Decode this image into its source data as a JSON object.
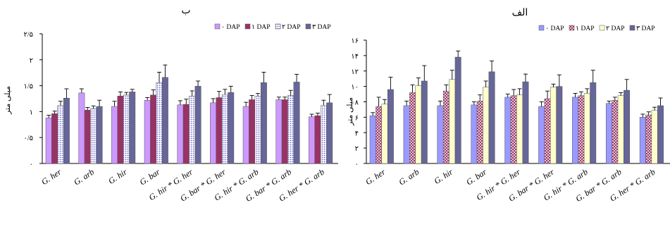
{
  "chart_data": [
    {
      "type": "bar",
      "title": "ب",
      "ylabel": "میلی متر",
      "xlabel": "",
      "ylim": [
        0,
        2.5
      ],
      "y_ticks": [
        0,
        0.5,
        1,
        1.5,
        2,
        2.5
      ],
      "y_tick_labels": [
        "۰",
        "۰/۵",
        "۱",
        "۱/۵",
        "۲",
        "۲/۵"
      ],
      "categories": [
        "G. her",
        "G. arb",
        "G. hir",
        "G. bar",
        "G. hir * G. her",
        "G. bar * G. her",
        "G. hir * G. arb",
        "G. bar * G. arb",
        "G. her * G. arb"
      ],
      "legend_position": "top-right",
      "series": [
        {
          "name": "۰ DAP",
          "color": "#cc99ff",
          "pattern": "solid",
          "values": [
            0.88,
            1.36,
            1.1,
            1.22,
            1.13,
            1.17,
            1.1,
            1.23,
            0.9
          ],
          "errors": [
            0.05,
            0.08,
            0.1,
            0.05,
            0.08,
            0.08,
            0.08,
            0.05,
            0.05
          ]
        },
        {
          "name": "۱ DAP",
          "color": "#993366",
          "pattern": "solid",
          "values": [
            0.96,
            1.03,
            1.3,
            1.32,
            1.14,
            1.27,
            1.23,
            1.23,
            0.92
          ],
          "errors": [
            0.05,
            0.05,
            0.08,
            0.1,
            0.1,
            0.12,
            0.08,
            0.05,
            0.05
          ]
        },
        {
          "name": "۲ DAP",
          "color": "#9999ff",
          "pattern": "dots",
          "values": [
            1.12,
            1.06,
            1.32,
            1.56,
            1.3,
            1.33,
            1.3,
            1.31,
            1.12
          ],
          "errors": [
            0.08,
            0.05,
            0.05,
            0.2,
            0.1,
            0.1,
            0.05,
            0.1,
            0.1
          ]
        },
        {
          "name": "۳ DAP",
          "color": "#666699",
          "pattern": "solid",
          "values": [
            1.26,
            1.1,
            1.38,
            1.66,
            1.49,
            1.37,
            1.56,
            1.57,
            1.17
          ],
          "errors": [
            0.18,
            0.12,
            0.05,
            0.24,
            0.1,
            0.12,
            0.2,
            0.15,
            0.16
          ]
        }
      ]
    },
    {
      "type": "bar",
      "title": "الف",
      "ylabel": "میلی متر",
      "xlabel": "",
      "ylim": [
        0,
        16
      ],
      "y_ticks": [
        0,
        2,
        4,
        6,
        8,
        10,
        12,
        14,
        16
      ],
      "y_tick_labels": [
        "۰",
        "۲",
        "۴",
        "۶",
        "۸",
        "۱۰",
        "۱۲",
        "۱۴",
        "۱۶"
      ],
      "categories": [
        "G. her",
        "G. arb",
        "G. hir",
        "G. bar",
        "G. hir * G. her",
        "G. bar * G. her",
        "G. hir * G. arb",
        "G. bar * G. arb",
        "G. her * G. arb"
      ],
      "legend_position": "top-right",
      "series": [
        {
          "name": "۰ DAP",
          "color": "#9999ff",
          "pattern": "solid",
          "values": [
            6.2,
            7.5,
            7.5,
            7.6,
            8.6,
            7.4,
            8.6,
            7.8,
            6.0
          ],
          "errors": [
            0.4,
            0.6,
            0.6,
            0.4,
            0.4,
            0.6,
            0.5,
            0.3,
            0.4
          ]
        },
        {
          "name": "۱ DAP",
          "color": "#993366",
          "pattern": "crosshatch",
          "values": [
            7.4,
            9.2,
            9.4,
            8.1,
            8.8,
            8.4,
            8.8,
            8.2,
            6.3
          ],
          "errors": [
            1.2,
            1.0,
            0.8,
            0.8,
            0.8,
            1.0,
            0.5,
            0.4,
            0.4
          ]
        },
        {
          "name": "۲ DAP",
          "color": "#ffffcc",
          "pattern": "solid",
          "values": [
            7.7,
            10.1,
            10.9,
            9.9,
            8.9,
            9.9,
            9.1,
            8.8,
            6.9
          ],
          "errors": [
            0.6,
            1.0,
            1.2,
            0.8,
            0.8,
            0.4,
            0.6,
            0.4,
            0.4
          ]
        },
        {
          "name": "۳ DAP",
          "color": "#666699",
          "pattern": "solid",
          "values": [
            9.6,
            10.7,
            13.8,
            11.9,
            10.6,
            10.0,
            10.5,
            9.5,
            7.5
          ],
          "errors": [
            1.6,
            2.0,
            0.8,
            1.4,
            1.0,
            1.5,
            1.6,
            1.4,
            1.0
          ]
        }
      ]
    }
  ]
}
